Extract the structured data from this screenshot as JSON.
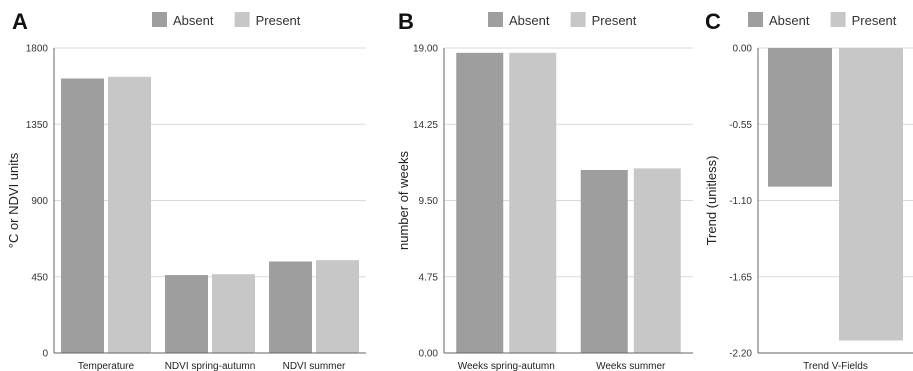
{
  "colors": {
    "absent": "#9d9e9d",
    "present": "#c6c7c6",
    "grid": "#d9d9d9"
  },
  "chart_data": [
    {
      "panel": "A",
      "type": "bar",
      "legend": [
        "Absent",
        "Present"
      ],
      "legend_position": "top",
      "ylabel": "°C or NDVI units",
      "xlabel": "",
      "ylim": [
        0,
        1800
      ],
      "yticks": [
        "1800",
        "1350",
        "900",
        "450",
        "0"
      ],
      "categories": [
        "Temperature",
        "NDVI spring-autumn",
        "NDVI summer"
      ],
      "series": [
        {
          "name": "Absent",
          "values": [
            1620,
            460,
            540
          ]
        },
        {
          "name": "Present",
          "values": [
            1630,
            465,
            548
          ]
        }
      ],
      "grid": true
    },
    {
      "panel": "B",
      "type": "bar",
      "legend": [
        "Absent",
        "Present"
      ],
      "legend_position": "top",
      "ylabel": "number of weeks",
      "xlabel": "",
      "ylim": [
        0,
        19
      ],
      "yticks": [
        "19.00",
        "14.25",
        "9.50",
        "4.75",
        "0.00"
      ],
      "categories": [
        "Weeks spring-autumn",
        "Weeks summer"
      ],
      "series": [
        {
          "name": "Absent",
          "values": [
            18.7,
            11.4
          ]
        },
        {
          "name": "Present",
          "values": [
            18.7,
            11.5
          ]
        }
      ],
      "grid": true
    },
    {
      "panel": "C",
      "type": "bar",
      "legend": [
        "Absent",
        "Present"
      ],
      "legend_position": "top",
      "ylabel": "Trend (unitless)",
      "xlabel": "",
      "ylim": [
        -2.2,
        0
      ],
      "yticks": [
        "0.00",
        "-0.55",
        "-1.10",
        "-1.65",
        "-2.20"
      ],
      "categories": [
        "Trend V-Fields"
      ],
      "series": [
        {
          "name": "Absent",
          "values": [
            -1.0
          ]
        },
        {
          "name": "Present",
          "values": [
            -2.11
          ]
        }
      ],
      "grid": true
    }
  ]
}
